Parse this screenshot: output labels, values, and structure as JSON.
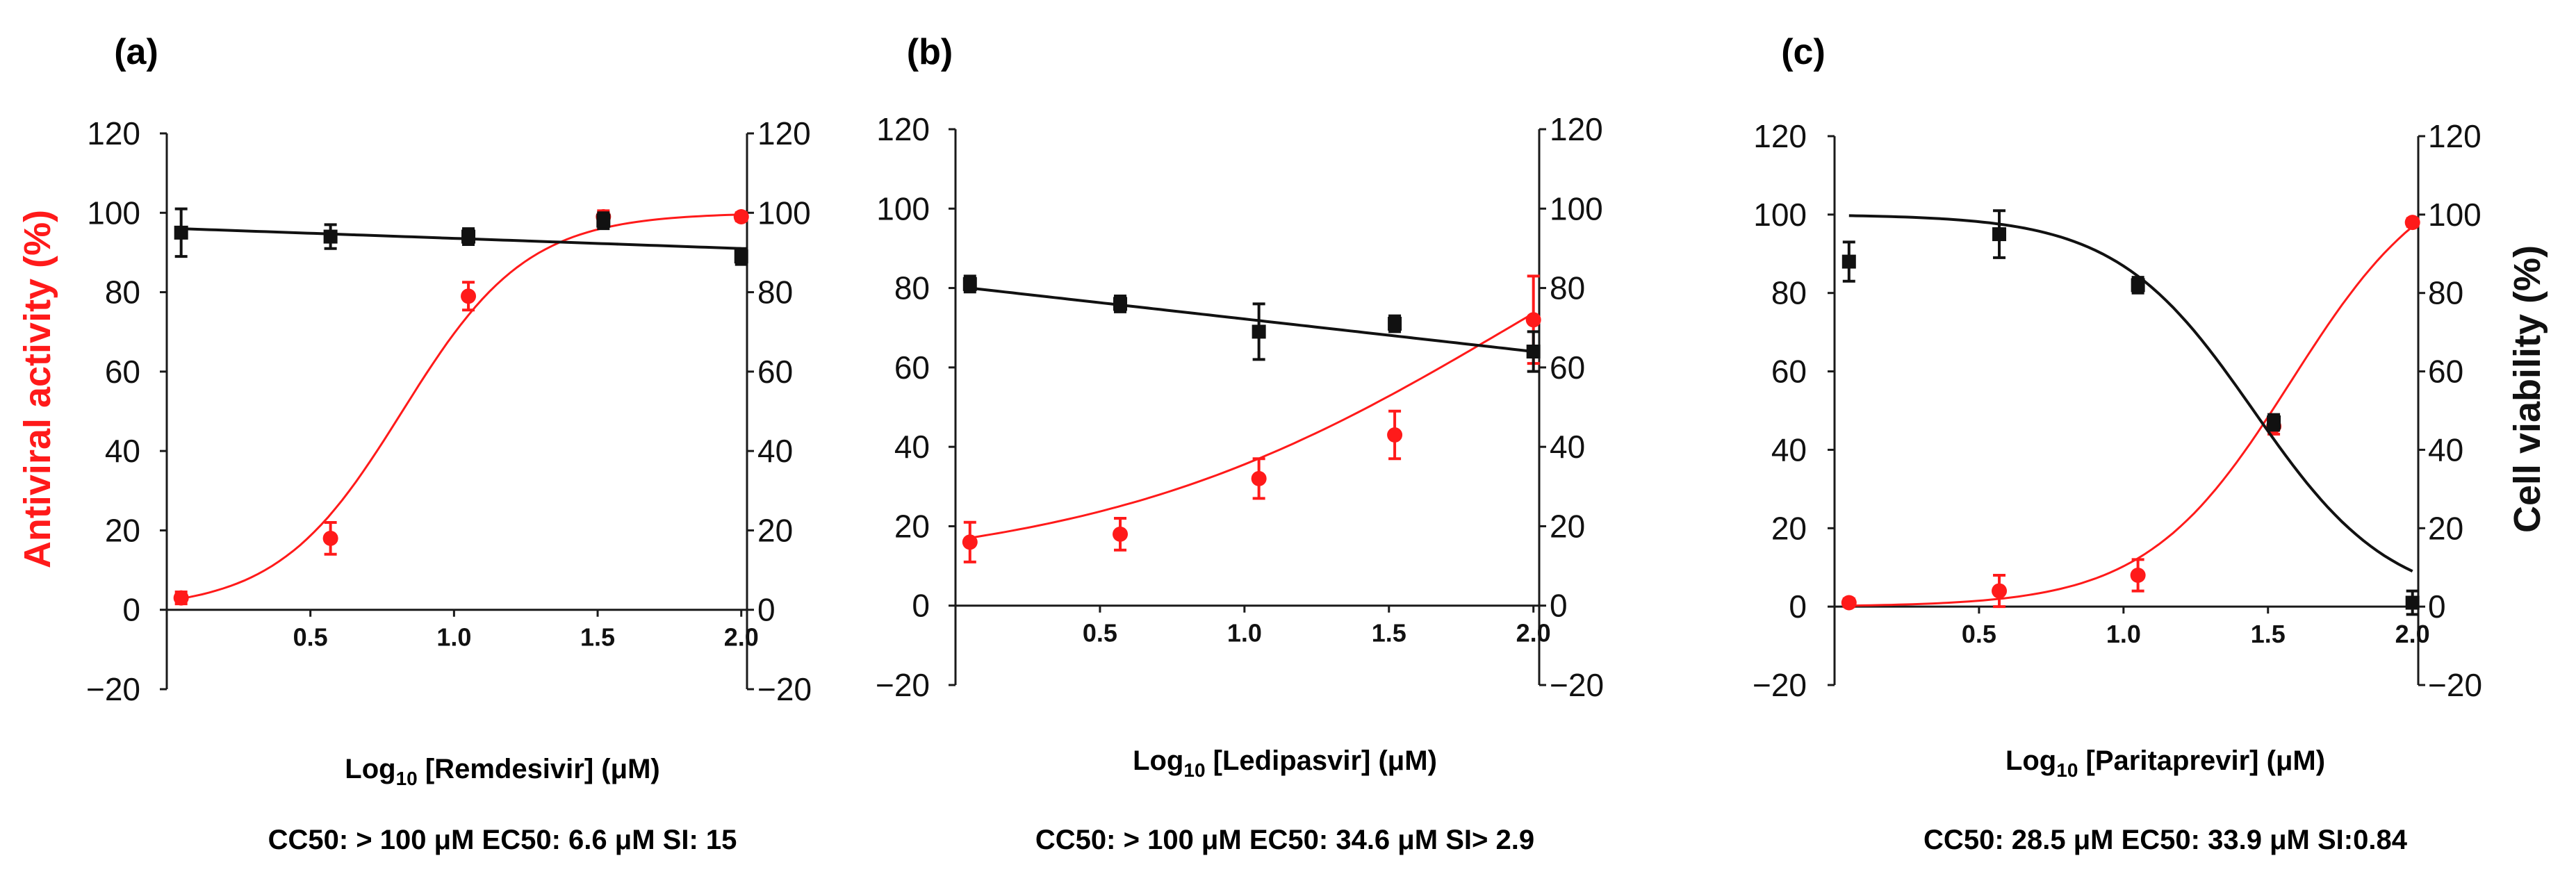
{
  "figure": {
    "left_axis_label": "Antiviral activity (%)",
    "right_axis_label": "Cell viability (%)"
  },
  "colors": {
    "antiviral": "#ff1a1a",
    "viability": "#111111",
    "axis": "#1a1a1a"
  },
  "chart_data": [
    {
      "type": "scatter",
      "panel_label": "(a)",
      "xlabel_prefix": "Log",
      "xlabel_sub": "10",
      "xlabel_suffix": " [Remdesivir] (μM)",
      "metrics": "CC50: > 100  μM EC50: 6.6  μM SI: 15",
      "xlim": [
        0.0,
        2.02
      ],
      "ylim": [
        -20,
        120
      ],
      "xticks": [
        "0.5",
        "1.0",
        "1.5",
        "2.0"
      ],
      "xtick_values": [
        0.5,
        1.0,
        1.5,
        2.0
      ],
      "yticks": [
        "−20",
        "0",
        "20",
        "40",
        "60",
        "80",
        "100",
        "120"
      ],
      "ytick_values": [
        -20,
        0,
        20,
        40,
        60,
        80,
        100,
        120
      ],
      "series": [
        {
          "name": "Antiviral activity",
          "color_key": "antiviral",
          "marker": "circle",
          "x": [
            0.05,
            0.57,
            1.05,
            1.52,
            2.0
          ],
          "y": [
            3,
            18,
            79,
            99,
            99
          ],
          "err": [
            1.5,
            4,
            3.5,
            1.5,
            1
          ],
          "fit": {
            "model": "logistic",
            "bottom": 0,
            "top": 100,
            "x50": 0.82,
            "hill": 4.6,
            "x_from": 0.05,
            "x_to": 2.0
          }
        },
        {
          "name": "Cell viability",
          "color_key": "viability",
          "marker": "square",
          "x": [
            0.05,
            0.57,
            1.05,
            1.52,
            2.0
          ],
          "y": [
            95,
            94,
            94,
            98,
            89
          ],
          "err": [
            6,
            3,
            2,
            2,
            2
          ],
          "fit": {
            "model": "linear",
            "x_from": 0.05,
            "y_from": 96,
            "x_to": 2.0,
            "y_to": 91
          }
        }
      ]
    },
    {
      "type": "scatter",
      "panel_label": "(b)",
      "xlabel_prefix": "Log",
      "xlabel_sub": "10",
      "xlabel_suffix": " [Ledipasvir] (μM)",
      "metrics": "CC50: > 100  μM EC50: 34.6  μM SI> 2.9",
      "xlim": [
        0.0,
        2.02
      ],
      "ylim": [
        -20,
        120
      ],
      "xticks": [
        "0.5",
        "1.0",
        "1.5",
        "2.0"
      ],
      "xtick_values": [
        0.5,
        1.0,
        1.5,
        2.0
      ],
      "yticks": [
        "−20",
        "0",
        "20",
        "40",
        "60",
        "80",
        "100",
        "120"
      ],
      "ytick_values": [
        -20,
        0,
        20,
        40,
        60,
        80,
        100,
        120
      ],
      "series": [
        {
          "name": "Antiviral activity",
          "color_key": "antiviral",
          "marker": "circle",
          "x": [
            0.05,
            0.57,
            1.05,
            1.52,
            2.0
          ],
          "y": [
            16,
            18,
            32,
            43,
            72
          ],
          "err": [
            5,
            4,
            5,
            6,
            11
          ],
          "fit": {
            "model": "logistic",
            "bottom": 8,
            "top": 135,
            "x50": 1.95,
            "hill": 1.35,
            "x_from": 0.05,
            "x_to": 2.0
          }
        },
        {
          "name": "Cell viability",
          "color_key": "viability",
          "marker": "square",
          "x": [
            0.05,
            0.57,
            1.05,
            1.52,
            2.0
          ],
          "y": [
            81,
            76,
            69,
            71,
            64
          ],
          "err": [
            2,
            2,
            7,
            2,
            5
          ],
          "fit": {
            "model": "linear",
            "x_from": 0.05,
            "y_from": 80,
            "x_to": 2.0,
            "y_to": 64
          }
        }
      ]
    },
    {
      "type": "scatter",
      "panel_label": "(c)",
      "xlabel_prefix": "Log",
      "xlabel_sub": "10",
      "xlabel_suffix": " [Paritaprevir] (μM)",
      "metrics": "CC50: 28.5  μM EC50: 33.9 μM SI:0.84",
      "xlim": [
        0.0,
        2.02
      ],
      "ylim": [
        -20,
        120
      ],
      "xticks": [
        "0.5",
        "1.0",
        "1.5",
        "2.0"
      ],
      "xtick_values": [
        0.5,
        1.0,
        1.5,
        2.0
      ],
      "yticks": [
        "−20",
        "0",
        "20",
        "40",
        "60",
        "80",
        "100",
        "120"
      ],
      "ytick_values": [
        -20,
        0,
        20,
        40,
        60,
        80,
        100,
        120
      ],
      "series": [
        {
          "name": "Antiviral activity",
          "color_key": "antiviral",
          "marker": "circle",
          "x": [
            0.05,
            0.57,
            1.05,
            1.52,
            2.0
          ],
          "y": [
            1,
            4,
            8,
            46,
            98
          ],
          "err": [
            1,
            4,
            4,
            2,
            1
          ],
          "fit": {
            "model": "logistic",
            "bottom": 0,
            "top": 115,
            "x50": 1.58,
            "hill": 4.0,
            "x_from": 0.05,
            "x_to": 2.0
          }
        },
        {
          "name": "Cell viability",
          "color_key": "viability",
          "marker": "square",
          "x": [
            0.05,
            0.57,
            1.05,
            1.52,
            2.0
          ],
          "y": [
            88,
            95,
            82,
            47,
            1
          ],
          "err": [
            5,
            6,
            2,
            2,
            3
          ],
          "fit": {
            "model": "logistic_desc",
            "bottom": 0,
            "top": 100,
            "x50": 1.45,
            "hill": 4.2,
            "x_from": 0.05,
            "x_to": 2.0
          }
        }
      ]
    }
  ]
}
